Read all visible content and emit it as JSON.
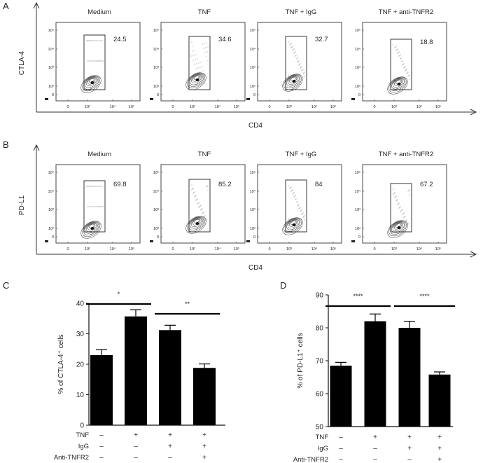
{
  "panels": {
    "A": {
      "label": "A",
      "ylabel": "CTLA-4",
      "xlabel": "CD4",
      "plots": [
        {
          "title": "Medium",
          "value": "24.5"
        },
        {
          "title": "TNF",
          "value": "34.6"
        },
        {
          "title": "TNF + IgG",
          "value": "32.7"
        },
        {
          "title": "TNF + anti-TNFR2",
          "value": "18.8"
        }
      ]
    },
    "B": {
      "label": "B",
      "ylabel": "PD-L1",
      "xlabel": "CD4",
      "plots": [
        {
          "title": "Medium",
          "value": "69.8"
        },
        {
          "title": "TNF",
          "value": "85.2"
        },
        {
          "title": "TNF + IgG",
          "value": "84"
        },
        {
          "title": "TNF + anti-TNFR2",
          "value": "67.2"
        }
      ]
    }
  },
  "flow_axes": {
    "y_ticks": [
      "10⁵",
      "10⁴",
      "10³",
      "10²",
      "0"
    ],
    "x_ticks": [
      "0",
      "10³",
      "10⁴",
      "10⁵"
    ]
  },
  "treatment_rows": [
    {
      "label": "TNF",
      "marks": [
        "–",
        "+",
        "+",
        "+"
      ]
    },
    {
      "label": "IgG",
      "marks": [
        "–",
        "–",
        "+",
        "+"
      ]
    },
    {
      "label": "Anti-TNFR2",
      "marks": [
        "–",
        "–",
        "–",
        "+"
      ]
    }
  ],
  "chart_data": [
    {
      "panel": "C",
      "type": "bar",
      "ylabel": "% of CTLA-4⁺ cells",
      "ylim": [
        0,
        40
      ],
      "yticks": [
        0,
        10,
        20,
        30,
        40
      ],
      "categories": [
        "Medium",
        "TNF",
        "TNF + IgG",
        "TNF + anti-TNFR2"
      ],
      "values": [
        23,
        35.7,
        31.2,
        18.8
      ],
      "errors": [
        1.8,
        2.2,
        1.6,
        1.3
      ],
      "significance": [
        {
          "from": 0,
          "to": 1,
          "label": "*"
        },
        {
          "from": 2,
          "to": 3,
          "label": "**"
        }
      ]
    },
    {
      "panel": "D",
      "type": "bar",
      "ylabel": "% of PD-L1⁺ cells",
      "ylim": [
        50,
        90
      ],
      "yticks": [
        50,
        60,
        70,
        80,
        90
      ],
      "categories": [
        "Medium",
        "TNF",
        "TNF + IgG",
        "TNF + anti-TNFR2"
      ],
      "values": [
        68.5,
        82,
        80,
        65.8
      ],
      "errors": [
        1.0,
        2.2,
        2.0,
        0.8
      ],
      "significance": [
        {
          "from": 0,
          "to": 1,
          "label": "****"
        },
        {
          "from": 2,
          "to": 3,
          "label": "****"
        }
      ]
    }
  ]
}
